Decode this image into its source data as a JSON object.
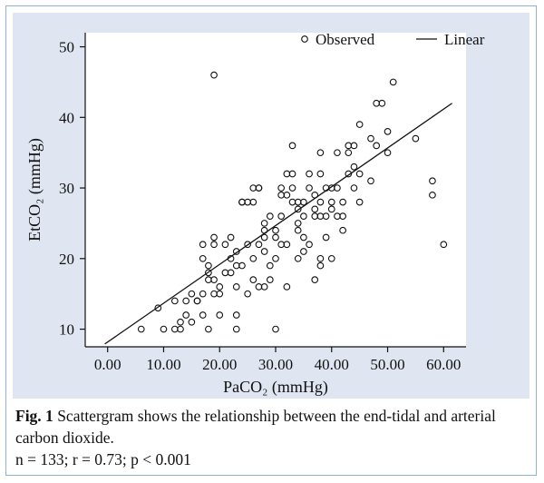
{
  "chart_data": {
    "type": "scatter",
    "xlabel": "PaCO₂ (mmHg)",
    "ylabel": "EtCO₂ (mmHg)",
    "xlim": [
      -4,
      64
    ],
    "ylim": [
      7.5,
      52
    ],
    "xticks": [
      "0.00",
      "10.00",
      "20.00",
      "30.00",
      "40.00",
      "50.00",
      "60.00"
    ],
    "xtick_values": [
      0,
      10,
      20,
      30,
      40,
      50,
      60
    ],
    "yticks": [
      "10",
      "20",
      "30",
      "40",
      "50"
    ],
    "ytick_values": [
      10,
      20,
      30,
      40,
      50
    ],
    "grid": false,
    "legend_position": "top-right",
    "legend": [
      {
        "marker": "circle",
        "label": "Observed"
      },
      {
        "marker": "line",
        "label": "Linear"
      }
    ],
    "series": [
      {
        "name": "Observed",
        "points": [
          [
            6,
            10
          ],
          [
            9,
            13
          ],
          [
            10,
            10
          ],
          [
            12,
            10
          ],
          [
            12,
            14
          ],
          [
            13,
            10
          ],
          [
            13,
            11
          ],
          [
            14,
            12
          ],
          [
            14,
            14
          ],
          [
            15,
            11
          ],
          [
            15,
            15
          ],
          [
            16,
            14
          ],
          [
            16,
            14
          ],
          [
            17,
            12
          ],
          [
            17,
            15
          ],
          [
            17,
            20
          ],
          [
            17,
            22
          ],
          [
            18,
            10
          ],
          [
            18,
            17
          ],
          [
            18,
            18
          ],
          [
            18,
            19
          ],
          [
            19,
            15
          ],
          [
            19,
            17
          ],
          [
            19,
            46
          ],
          [
            19,
            23
          ],
          [
            19,
            22
          ],
          [
            20,
            12
          ],
          [
            20,
            15
          ],
          [
            20,
            16
          ],
          [
            21,
            18
          ],
          [
            21,
            22
          ],
          [
            22,
            18
          ],
          [
            22,
            20
          ],
          [
            22,
            23
          ],
          [
            23,
            10
          ],
          [
            23,
            12
          ],
          [
            23,
            16
          ],
          [
            23,
            19
          ],
          [
            23,
            21
          ],
          [
            24,
            19
          ],
          [
            24,
            28
          ],
          [
            24,
            28
          ],
          [
            25,
            22
          ],
          [
            25,
            15
          ],
          [
            25,
            28
          ],
          [
            26,
            17
          ],
          [
            26,
            20
          ],
          [
            26,
            30
          ],
          [
            26,
            28
          ],
          [
            27,
            16
          ],
          [
            27,
            22
          ],
          [
            27,
            30
          ],
          [
            27,
            30
          ],
          [
            28,
            16
          ],
          [
            28,
            21
          ],
          [
            28,
            24
          ],
          [
            28,
            25
          ],
          [
            28,
            23
          ],
          [
            29,
            17
          ],
          [
            29,
            19
          ],
          [
            29,
            26
          ],
          [
            30,
            10
          ],
          [
            30,
            20
          ],
          [
            30,
            23
          ],
          [
            30,
            24
          ],
          [
            31,
            22
          ],
          [
            31,
            26
          ],
          [
            31,
            29
          ],
          [
            31,
            30
          ],
          [
            32,
            16
          ],
          [
            32,
            22
          ],
          [
            32,
            29
          ],
          [
            32,
            32
          ],
          [
            33,
            28
          ],
          [
            33,
            32
          ],
          [
            33,
            30
          ],
          [
            33,
            36
          ],
          [
            34,
            24
          ],
          [
            34,
            25
          ],
          [
            34,
            20
          ],
          [
            34,
            27
          ],
          [
            34,
            28
          ],
          [
            35,
            21
          ],
          [
            35,
            23
          ],
          [
            35,
            26
          ],
          [
            35,
            28
          ],
          [
            36,
            22
          ],
          [
            36,
            30
          ],
          [
            36,
            32
          ],
          [
            37,
            17
          ],
          [
            37,
            26
          ],
          [
            37,
            29
          ],
          [
            37,
            27
          ],
          [
            38,
            19
          ],
          [
            38,
            20
          ],
          [
            38,
            26
          ],
          [
            38,
            28
          ],
          [
            38,
            32
          ],
          [
            38,
            35
          ],
          [
            39,
            23
          ],
          [
            39,
            30
          ],
          [
            39,
            26
          ],
          [
            40,
            20
          ],
          [
            40,
            27
          ],
          [
            40,
            28
          ],
          [
            40,
            30
          ],
          [
            41,
            26
          ],
          [
            41,
            30
          ],
          [
            41,
            35
          ],
          [
            42,
            24
          ],
          [
            42,
            26
          ],
          [
            42,
            28
          ],
          [
            43,
            35
          ],
          [
            43,
            32
          ],
          [
            43,
            36
          ],
          [
            44,
            30
          ],
          [
            44,
            33
          ],
          [
            44,
            36
          ],
          [
            45,
            32
          ],
          [
            45,
            28
          ],
          [
            45,
            39
          ],
          [
            47,
            31
          ],
          [
            47,
            37
          ],
          [
            48,
            42
          ],
          [
            48,
            36
          ],
          [
            49,
            42
          ],
          [
            50,
            35
          ],
          [
            50,
            38
          ],
          [
            51,
            45
          ],
          [
            58,
            31
          ],
          [
            58,
            29
          ],
          [
            60,
            22
          ],
          [
            55,
            37
          ]
        ]
      },
      {
        "name": "Linear",
        "line": {
          "x0": -0.5,
          "y0": 7.9,
          "x1": 61.5,
          "y1": 42.0
        }
      }
    ]
  },
  "caption": {
    "fig_label": "Fig. 1",
    "text": " Scattergram shows the relationship between the end-tidal and arterial carbon dioxide.",
    "stats": "n = 133; r = 0.73; p < 0.001"
  }
}
